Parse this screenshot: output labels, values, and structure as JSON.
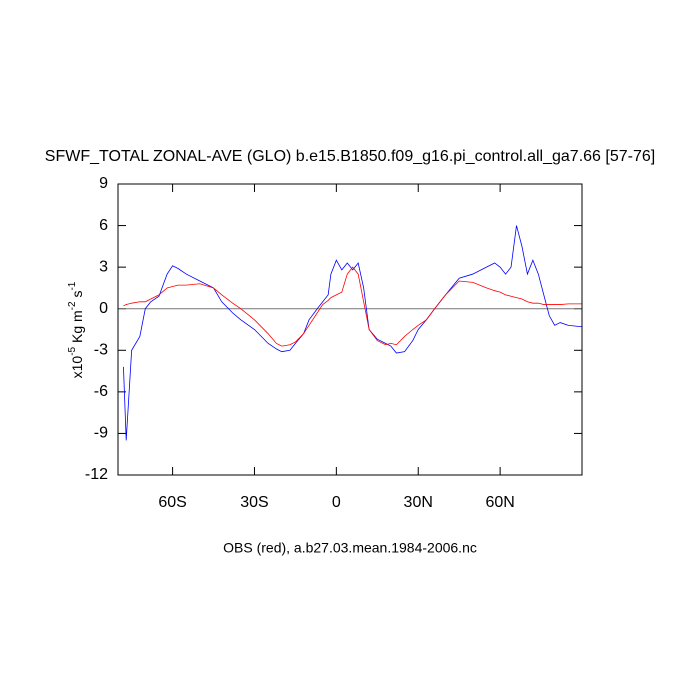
{
  "chart_data": {
    "type": "line",
    "title": "SFWF_TOTAL ZONAL-AVE (GLO) b.e15.B1850.f09_g16.pi_control.all_ga7.66 [57-76]",
    "footer": "OBS (red), a.b27.03.mean.1984-2006.nc",
    "ylabel": [
      "x10",
      "-5",
      " Kg m",
      "-2",
      " s",
      "-1"
    ],
    "x": [
      -78,
      -77,
      -75,
      -72,
      -70,
      -68,
      -65,
      -62,
      -60,
      -58,
      -55,
      -50,
      -45,
      -42,
      -38,
      -35,
      -30,
      -25,
      -22,
      -20,
      -17,
      -15,
      -12,
      -10,
      -7,
      -5,
      -3,
      -2,
      0,
      2,
      4,
      6,
      8,
      10,
      12,
      15,
      18,
      20,
      22,
      25,
      28,
      30,
      33,
      36,
      40,
      45,
      50,
      55,
      58,
      60,
      62,
      64,
      66,
      68,
      70,
      72,
      74,
      76,
      78,
      80,
      82,
      85,
      90
    ],
    "series": [
      {
        "color": "#0000ff",
        "values": [
          -4.2,
          -9.5,
          -3,
          -2,
          0,
          0.5,
          0.9,
          2.5,
          3.1,
          2.9,
          2.5,
          2,
          1.5,
          0.5,
          -0.3,
          -0.8,
          -1.5,
          -2.5,
          -2.9,
          -3.1,
          -3,
          -2.5,
          -1.8,
          -0.8,
          0,
          0.5,
          1,
          2.5,
          3.5,
          2.8,
          3.3,
          2.8,
          3.3,
          1.5,
          -1.5,
          -2.2,
          -2.5,
          -2.7,
          -3.2,
          -3.1,
          -2.3,
          -1.5,
          -0.8,
          0,
          1,
          2.2,
          2.5,
          3,
          3.3,
          3,
          2.5,
          3,
          6,
          4.5,
          2.5,
          3.5,
          2.5,
          1,
          -0.5,
          -1.2,
          -1,
          -1.2,
          -1.3
        ]
      },
      {
        "color": "#ff0000",
        "values": [
          0.2,
          0.3,
          0.4,
          0.5,
          0.5,
          0.7,
          1,
          1.5,
          1.6,
          1.7,
          1.7,
          1.8,
          1.5,
          1,
          0.4,
          0,
          -0.8,
          -1.8,
          -2.5,
          -2.7,
          -2.6,
          -2.4,
          -1.8,
          -1.2,
          -0.3,
          0.3,
          0.6,
          0.8,
          1,
          1.2,
          2.5,
          3,
          2.5,
          0.5,
          -1.5,
          -2.3,
          -2.6,
          -2.5,
          -2.6,
          -2,
          -1.5,
          -1.2,
          -0.8,
          0,
          1,
          2,
          1.9,
          1.5,
          1.3,
          1.2,
          1,
          0.9,
          0.8,
          0.7,
          0.5,
          0.4,
          0.4,
          0.3,
          0.3,
          0.3,
          0.3,
          0.35,
          0.35
        ]
      }
    ],
    "xlim": [
      -80,
      90
    ],
    "xticks": [
      {
        "value": -60,
        "label": "60S"
      },
      {
        "value": -30,
        "label": "30S"
      },
      0,
      {
        "value": 30,
        "label": "30N"
      },
      {
        "value": 60,
        "label": "60N"
      }
    ],
    "ylim": [
      -12,
      9
    ],
    "yticks": [
      -12,
      -9,
      -6,
      -3,
      0,
      3,
      6,
      9
    ],
    "zero_line": true
  }
}
